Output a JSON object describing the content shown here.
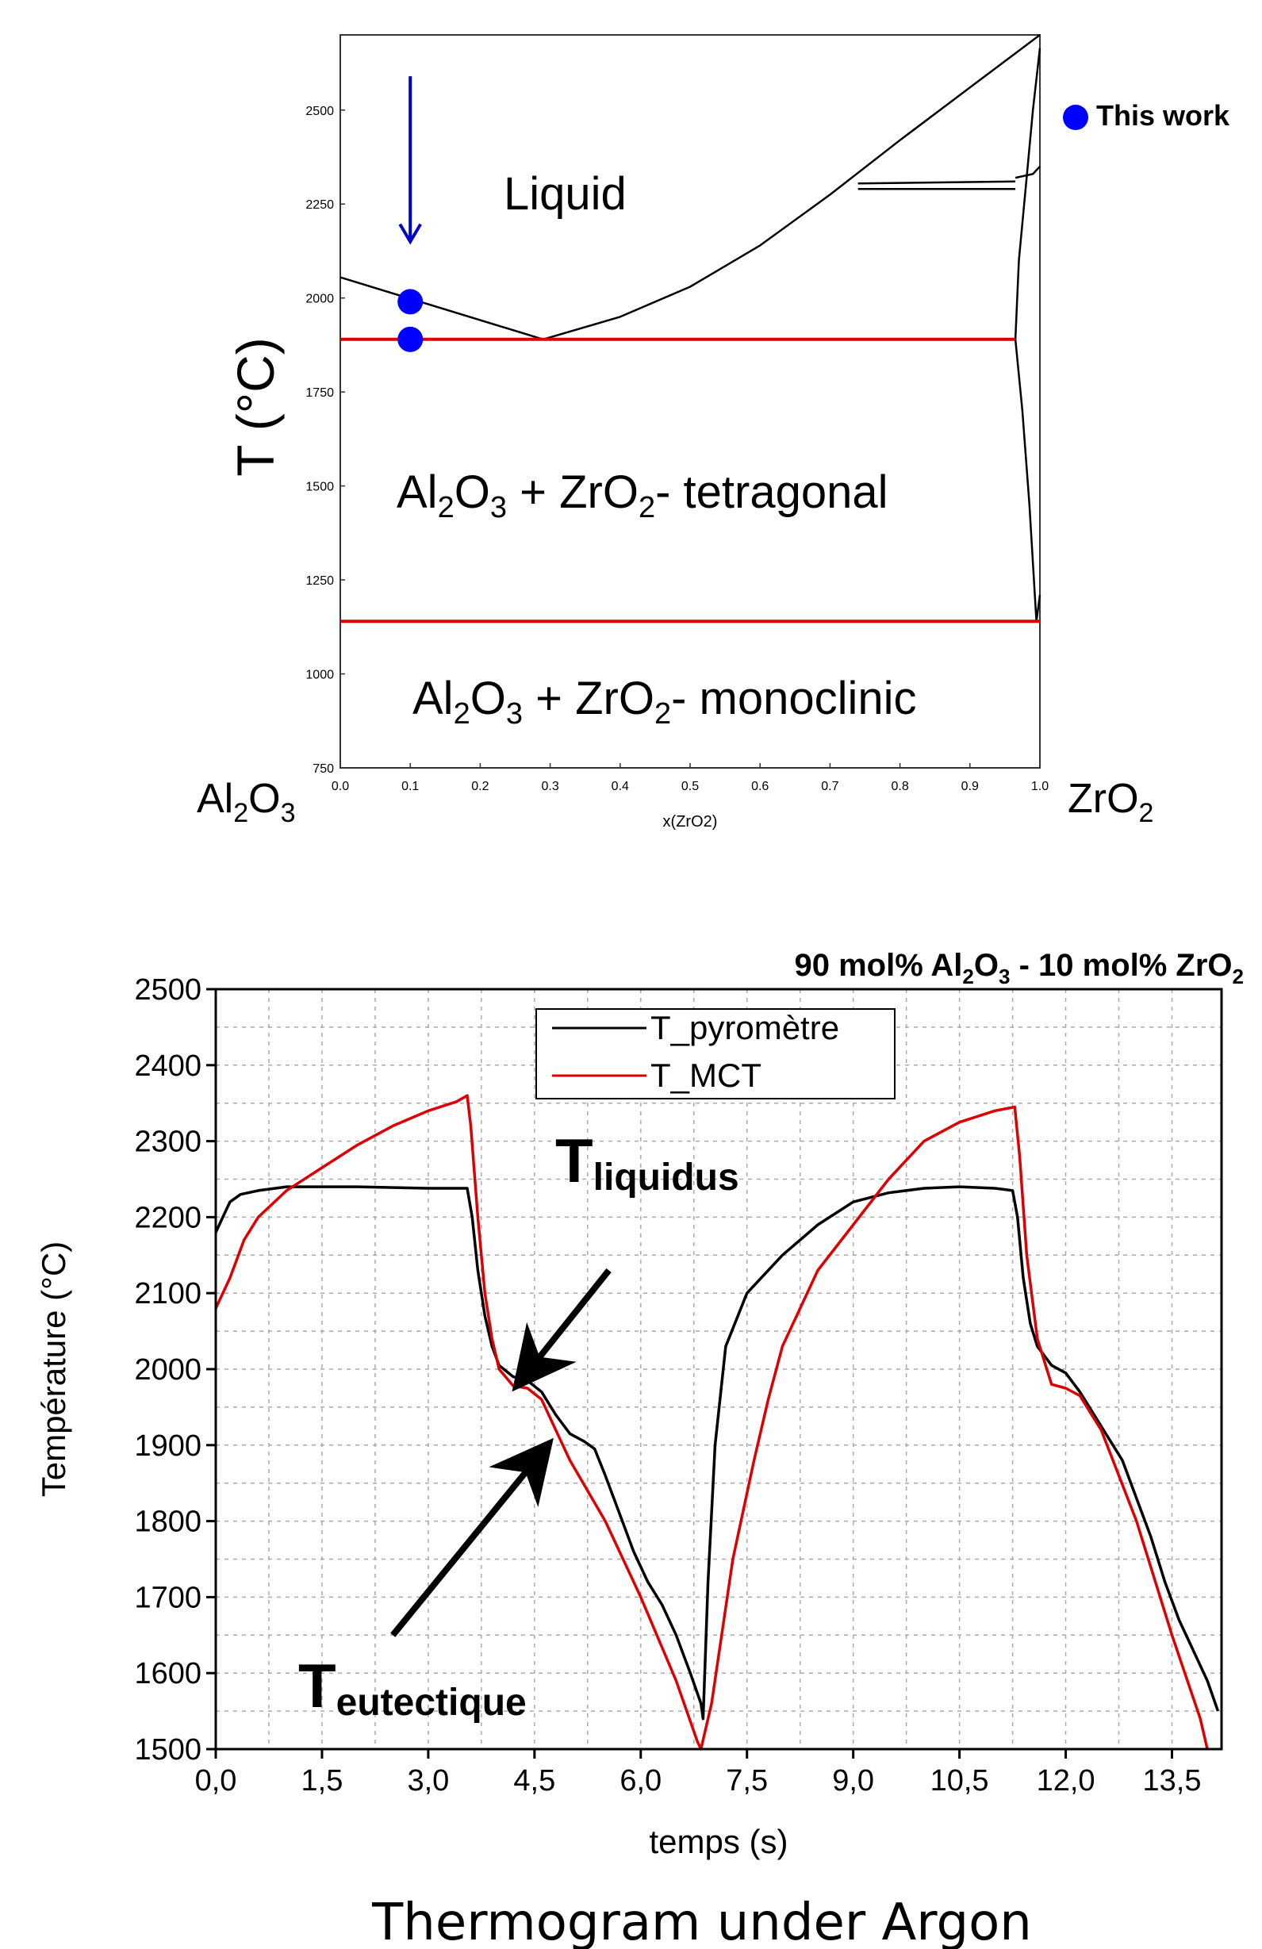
{
  "chart_data": [
    {
      "type": "line",
      "xlabel": "x(ZrO2)",
      "ylabel": "T (°C)",
      "xlim": [
        0,
        1
      ],
      "ylim": [
        750,
        2700
      ],
      "xticks": [
        "0.0",
        "0.1",
        "0.2",
        "0.3",
        "0.4",
        "0.5",
        "0.6",
        "0.7",
        "0.8",
        "0.9",
        "1.0"
      ],
      "yticks": [
        "750",
        "1000",
        "1250",
        "1500",
        "1750",
        "2000",
        "2250",
        "2500"
      ],
      "left_end_label": {
        "main": "Al",
        "sub1": "2",
        "mid": "O",
        "sub2": "3"
      },
      "right_end_label": {
        "main": "ZrO",
        "sub": "2"
      },
      "legend": {
        "label": "This work",
        "color": "#0000ff"
      },
      "region_labels": {
        "liquid": "Liquid",
        "tetragonal": {
          "p1": "Al",
          "s1": "2",
          "p2": "O",
          "s2": "3",
          "p3": " + ZrO",
          "s3": "2",
          "p4": "- tetragonal"
        },
        "monoclinic": {
          "p1": "Al",
          "s1": "2",
          "p2": "O",
          "s2": "3",
          "p3": " + ZrO",
          "s3": "2",
          "p4": "- monoclinic"
        }
      },
      "series": [
        {
          "color": "#000000",
          "values": [
            [
              0.0,
              2055
            ],
            [
              0.29,
              1890
            ]
          ]
        },
        {
          "color": "#000000",
          "values": [
            [
              0.29,
              1890
            ],
            [
              0.4,
              1950
            ],
            [
              0.5,
              2030
            ],
            [
              0.6,
              2140
            ],
            [
              0.7,
              2275
            ],
            [
              0.8,
              2420
            ],
            [
              0.9,
              2560
            ],
            [
              1.0,
              2700
            ]
          ]
        },
        {
          "color": "#000000",
          "values": [
            [
              0.74,
              2290
            ],
            [
              0.965,
              2290
            ]
          ]
        },
        {
          "color": "#000000",
          "values": [
            [
              0.74,
              2305
            ],
            [
              0.965,
              2310
            ]
          ]
        },
        {
          "color": "#000000",
          "values": [
            [
              0.965,
              1890
            ],
            [
              0.97,
              2100
            ],
            [
              0.98,
              2300
            ],
            [
              0.99,
              2500
            ],
            [
              1.0,
              2665
            ]
          ]
        },
        {
          "color": "#000000",
          "values": [
            [
              0.965,
              1890
            ],
            [
              0.975,
              1700
            ],
            [
              0.985,
              1450
            ],
            [
              0.995,
              1140
            ]
          ]
        },
        {
          "color": "#000000",
          "values": [
            [
              0.965,
              2320
            ],
            [
              0.99,
              2330
            ],
            [
              1.0,
              2350
            ]
          ]
        },
        {
          "color": "#000000",
          "values": [
            [
              0.995,
              1140
            ],
            [
              1.0,
              1210
            ]
          ]
        },
        {
          "color": "#e00000",
          "values": [
            [
              0.0,
              1890
            ],
            [
              0.965,
              1890
            ]
          ]
        },
        {
          "color": "#e00000",
          "values": [
            [
              0.0,
              1140
            ],
            [
              1.0,
              1140
            ]
          ]
        }
      ],
      "points": [
        {
          "x": 0.1,
          "y": 1990,
          "color": "#0000ff"
        },
        {
          "x": 0.1,
          "y": 1890,
          "color": "#0000ff"
        }
      ],
      "annotations": [
        {
          "type": "arrow",
          "x": 0.1,
          "y_from": 2590,
          "y_to": 2150,
          "color": "#0000cc"
        }
      ]
    },
    {
      "type": "line",
      "title": {
        "p1": "90 mol% Al",
        "s1": "2",
        "p2": "O",
        "s2": "3",
        "p3": " - 10 mol% ZrO",
        "s3": "2"
      },
      "xlabel": "temps (s)",
      "ylabel": "Température (°C)",
      "xlim": [
        0,
        14.2
      ],
      "ylim": [
        1500,
        2500
      ],
      "xticks": [
        "0,0",
        "1,5",
        "3,0",
        "4,5",
        "6,0",
        "7,5",
        "9,0",
        "10,5",
        "12,0",
        "13,5"
      ],
      "yticks": [
        "1500",
        "1600",
        "1700",
        "1800",
        "1900",
        "2000",
        "2100",
        "2200",
        "2300",
        "2400",
        "2500"
      ],
      "grid": true,
      "legend_position": "top-center",
      "series": [
        {
          "name": "T_pyromètre",
          "color": "#000000",
          "values": [
            [
              0.0,
              2180
            ],
            [
              0.1,
              2200
            ],
            [
              0.2,
              2220
            ],
            [
              0.35,
              2230
            ],
            [
              0.6,
              2235
            ],
            [
              1.0,
              2240
            ],
            [
              2.0,
              2240
            ],
            [
              3.0,
              2238
            ],
            [
              3.55,
              2238
            ],
            [
              3.62,
              2200
            ],
            [
              3.7,
              2130
            ],
            [
              3.8,
              2070
            ],
            [
              3.9,
              2030
            ],
            [
              4.0,
              2005
            ],
            [
              4.2,
              1990
            ],
            [
              4.4,
              1985
            ],
            [
              4.6,
              1970
            ],
            [
              4.8,
              1940
            ],
            [
              5.0,
              1915
            ],
            [
              5.2,
              1905
            ],
            [
              5.35,
              1895
            ],
            [
              5.5,
              1860
            ],
            [
              5.7,
              1810
            ],
            [
              5.9,
              1760
            ],
            [
              6.1,
              1720
            ],
            [
              6.3,
              1690
            ],
            [
              6.5,
              1650
            ],
            [
              6.7,
              1600
            ],
            [
              6.85,
              1560
            ],
            [
              6.88,
              1540
            ],
            [
              6.95,
              1720
            ],
            [
              7.05,
              1900
            ],
            [
              7.2,
              2030
            ],
            [
              7.5,
              2100
            ],
            [
              8.0,
              2150
            ],
            [
              8.5,
              2190
            ],
            [
              9.0,
              2220
            ],
            [
              9.5,
              2232
            ],
            [
              10.0,
              2238
            ],
            [
              10.5,
              2240
            ],
            [
              11.0,
              2238
            ],
            [
              11.25,
              2235
            ],
            [
              11.32,
              2200
            ],
            [
              11.4,
              2120
            ],
            [
              11.5,
              2060
            ],
            [
              11.6,
              2030
            ],
            [
              11.8,
              2005
            ],
            [
              12.0,
              1995
            ],
            [
              12.2,
              1970
            ],
            [
              12.4,
              1940
            ],
            [
              12.6,
              1910
            ],
            [
              12.8,
              1880
            ],
            [
              13.0,
              1830
            ],
            [
              13.2,
              1780
            ],
            [
              13.4,
              1720
            ],
            [
              13.6,
              1670
            ],
            [
              13.8,
              1630
            ],
            [
              14.0,
              1590
            ],
            [
              14.15,
              1550
            ]
          ]
        },
        {
          "name": "T_MCT",
          "color": "#dd0000",
          "values": [
            [
              0.0,
              2080
            ],
            [
              0.2,
              2120
            ],
            [
              0.4,
              2170
            ],
            [
              0.6,
              2200
            ],
            [
              1.0,
              2235
            ],
            [
              1.5,
              2265
            ],
            [
              2.0,
              2295
            ],
            [
              2.5,
              2320
            ],
            [
              3.0,
              2340
            ],
            [
              3.4,
              2352
            ],
            [
              3.55,
              2360
            ],
            [
              3.6,
              2320
            ],
            [
              3.7,
              2200
            ],
            [
              3.8,
              2100
            ],
            [
              3.9,
              2040
            ],
            [
              4.0,
              2000
            ],
            [
              4.2,
              1978
            ],
            [
              4.4,
              1975
            ],
            [
              4.6,
              1960
            ],
            [
              4.8,
              1920
            ],
            [
              5.0,
              1880
            ],
            [
              5.5,
              1800
            ],
            [
              6.0,
              1700
            ],
            [
              6.5,
              1590
            ],
            [
              6.8,
              1510
            ],
            [
              6.85,
              1500
            ],
            [
              7.0,
              1560
            ],
            [
              7.3,
              1750
            ],
            [
              7.6,
              1880
            ],
            [
              7.8,
              1960
            ],
            [
              8.0,
              2030
            ],
            [
              8.5,
              2130
            ],
            [
              9.0,
              2190
            ],
            [
              9.5,
              2250
            ],
            [
              10.0,
              2300
            ],
            [
              10.5,
              2325
            ],
            [
              11.0,
              2340
            ],
            [
              11.28,
              2345
            ],
            [
              11.35,
              2280
            ],
            [
              11.45,
              2150
            ],
            [
              11.6,
              2040
            ],
            [
              11.8,
              1980
            ],
            [
              12.0,
              1975
            ],
            [
              12.2,
              1965
            ],
            [
              12.5,
              1920
            ],
            [
              13.0,
              1800
            ],
            [
              13.5,
              1650
            ],
            [
              13.9,
              1540
            ],
            [
              14.0,
              1500
            ]
          ]
        }
      ],
      "annotations": [
        {
          "text": "T",
          "sub": "liquidus",
          "x": 4.3,
          "y": 2370,
          "arrow_from": [
            5.55,
            2130
          ],
          "arrow_to": [
            4.35,
            1990
          ]
        },
        {
          "text": "T",
          "sub": "eutectique",
          "x": 1.2,
          "y": 1570,
          "arrow_from": [
            2.5,
            1650
          ],
          "arrow_to": [
            4.6,
            1890
          ]
        }
      ]
    }
  ],
  "caption": "Thermogram under Argon"
}
